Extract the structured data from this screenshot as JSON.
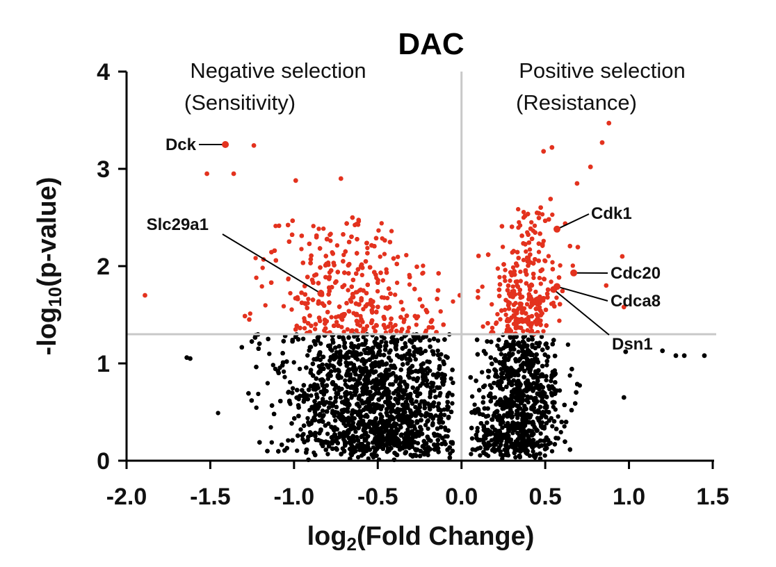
{
  "chart_data": {
    "type": "scatter",
    "subtype": "volcano",
    "title": "DAC",
    "xlabel_main": "log",
    "xlabel_sub": "2",
    "xlabel_rest": "(Fold Change)",
    "ylabel_main": "-log",
    "ylabel_sub": "10",
    "ylabel_rest": "(p-value)",
    "xlim": [
      -2.0,
      1.5
    ],
    "ylim": [
      0,
      4
    ],
    "x_ticks": [
      -2.0,
      -1.5,
      -1.0,
      -0.5,
      0.0,
      0.5,
      1.0,
      1.5
    ],
    "x_tick_labels": [
      "-2.0",
      "-1.5",
      "-1.0",
      "-0.5",
      "0.0",
      "0.5",
      "1.0",
      "1.5"
    ],
    "y_ticks": [
      0,
      1,
      2,
      3,
      4
    ],
    "y_tick_labels": [
      "0",
      "1",
      "2",
      "3",
      "4"
    ],
    "significance_threshold_y": 1.3,
    "reference_line_x": 0.0,
    "regions": {
      "negative": {
        "line1": "Negative selection",
        "line2": "(Sensitivity)",
        "line2_color": "#3a8fd0"
      },
      "positive": {
        "line1": "Positive selection",
        "line2": "(Resistance)",
        "line2_color": "#e3321e"
      }
    },
    "colors": {
      "significant": "#e3321e",
      "nonsignificant": "#000000",
      "guide": "#c8c8c8"
    },
    "labeled_genes": [
      {
        "name": "Dck",
        "x": -1.41,
        "y": 3.25
      },
      {
        "name": "Slc29a1",
        "x": -0.84,
        "y": 1.72
      },
      {
        "name": "Cdk1",
        "x": 0.57,
        "y": 2.38
      },
      {
        "name": "Cdc20",
        "x": 0.67,
        "y": 1.93
      },
      {
        "name": "Cdca8",
        "x": 0.57,
        "y": 1.79
      },
      {
        "name": "Dsn1",
        "x": 0.55,
        "y": 1.76
      }
    ],
    "highlight_points": [
      {
        "x": -1.89,
        "y": 1.7
      },
      {
        "x": -1.52,
        "y": 2.95
      },
      {
        "x": -1.36,
        "y": 2.95
      },
      {
        "x": -1.24,
        "y": 3.24
      },
      {
        "x": -0.99,
        "y": 2.88
      },
      {
        "x": -0.72,
        "y": 2.9
      },
      {
        "x": 0.88,
        "y": 3.47
      },
      {
        "x": 0.84,
        "y": 3.27
      },
      {
        "x": 0.77,
        "y": 3.02
      },
      {
        "x": 0.69,
        "y": 2.85
      },
      {
        "x": 0.54,
        "y": 3.22
      },
      {
        "x": 0.49,
        "y": 3.18
      },
      {
        "x": 0.96,
        "y": 2.1
      },
      {
        "x": 0.97,
        "y": 1.58
      },
      {
        "x": -0.14,
        "y": 1.75
      },
      {
        "x": -0.01,
        "y": 1.7
      },
      {
        "x": -0.15,
        "y": 1.32
      },
      {
        "x": -1.62,
        "y": 1.05
      },
      {
        "x": -1.64,
        "y": 1.06
      },
      {
        "x": 0.97,
        "y": 0.65
      },
      {
        "x": 1.28,
        "y": 1.08
      },
      {
        "x": 1.33,
        "y": 1.08
      },
      {
        "x": 1.45,
        "y": 1.08
      },
      {
        "x": 1.2,
        "y": 1.13
      },
      {
        "x": 0.98,
        "y": 1.12
      }
    ],
    "bulk_distribution": {
      "negative_arm": {
        "x_center": -0.55,
        "x_spread": 0.28,
        "x_min": -1.55,
        "x_max": -0.05,
        "y_max_significant": 2.5
      },
      "positive_arm": {
        "x_center": 0.35,
        "x_spread": 0.12,
        "x_min": 0.05,
        "x_max": 0.9,
        "y_max_significant": 2.7
      },
      "n_points_approx": 20000
    }
  }
}
